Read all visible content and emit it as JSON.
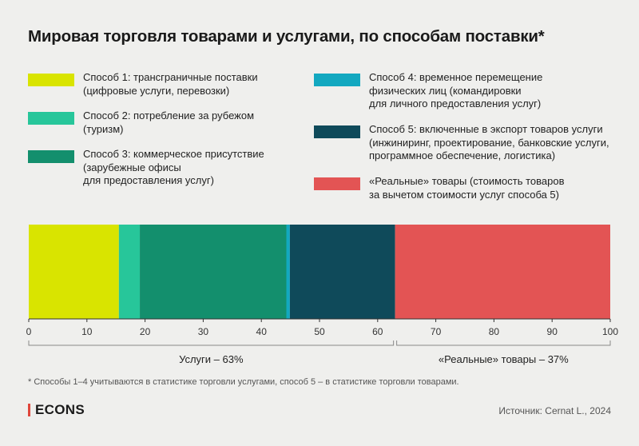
{
  "title": "Мировая торговля товарами и услугами, по способам поставки*",
  "legend": [
    {
      "label": "Способ 1: трансграничные поставки\n(цифровые услуги, перевозки)",
      "color": "#d9e400"
    },
    {
      "label": "Способ 2: потребление за рубежом\n(туризм)",
      "color": "#27c69a"
    },
    {
      "label": "Способ 3: коммерческое присутствие\n(зарубежные офисы\nдля предоставления услуг)",
      "color": "#138f6d"
    },
    {
      "label": "Способ 4: временное перемещение\nфизических лиц (командировки\nдля личного предоставления услуг)",
      "color": "#13a8c0"
    },
    {
      "label": "Способ 5: включенные в экспорт товаров услуги\n(инжиниринг, проектирование, банковские услуги,\nпрограммное обеспечение, логистика)",
      "color": "#0f4a5a"
    },
    {
      "label": "«Реальные» товары (стоимость товаров\nза вычетом стоимости услуг способа 5)",
      "color": "#e35454"
    }
  ],
  "chart_data": {
    "type": "bar",
    "orientation": "horizontal-stacked",
    "series": [
      {
        "name": "Способ 1",
        "value": 15.5,
        "color": "#d9e400"
      },
      {
        "name": "Способ 2",
        "value": 3.6,
        "color": "#27c69a"
      },
      {
        "name": "Способ 3",
        "value": 25.2,
        "color": "#138f6d"
      },
      {
        "name": "Способ 4",
        "value": 0.6,
        "color": "#13a8c0"
      },
      {
        "name": "Способ 5",
        "value": 18.1,
        "color": "#0f4a5a"
      },
      {
        "name": "«Реальные» товары",
        "value": 37.0,
        "color": "#e35454"
      }
    ],
    "xlim": [
      0,
      100
    ],
    "xticks": [
      "0",
      "10",
      "20",
      "30",
      "40",
      "50",
      "60",
      "70",
      "80",
      "90",
      "100"
    ],
    "groups": [
      {
        "label": "Услуги – 63%",
        "range": [
          0,
          63
        ]
      },
      {
        "label": "«Реальные» товары – 37%",
        "range": [
          63,
          100
        ]
      }
    ],
    "grid": false
  },
  "footnote": "* Способы 1–4 учитываются в статистике торговли услугами, способ 5 – в статистике торговли товарами.",
  "logo": "ECONS",
  "source": "Источник: Cernat L., 2024"
}
